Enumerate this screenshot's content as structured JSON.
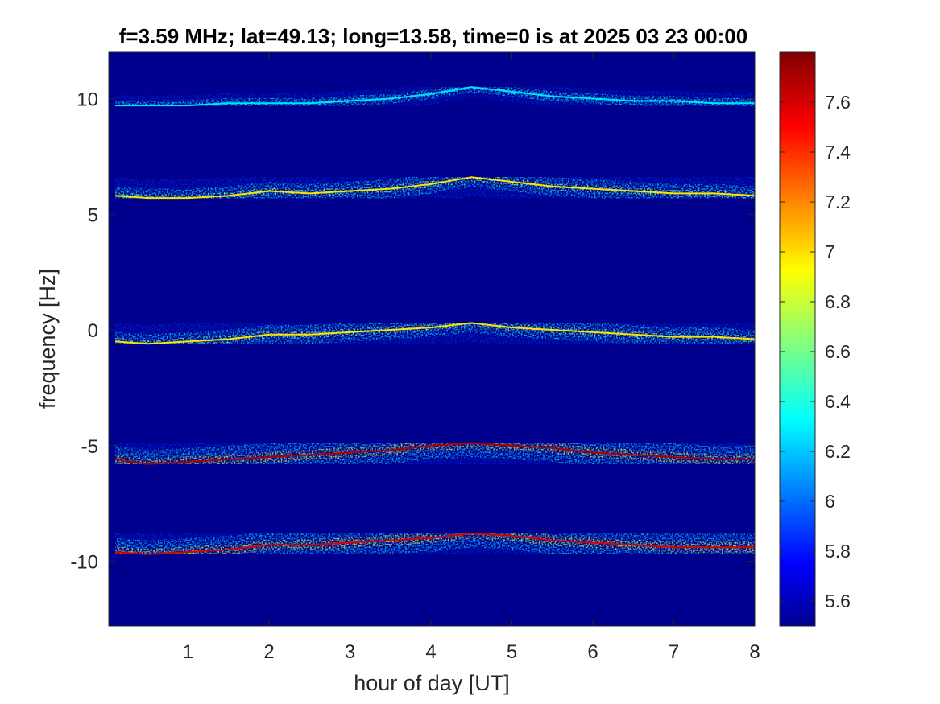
{
  "chart_data": {
    "type": "heatmap",
    "title": "f=3.59 MHz;  lat=49.13; long=13.58, time=0 is at 2025 03 23 00:00",
    "xlabel": "hour of day [UT]",
    "ylabel": "frequency [Hz]",
    "xlim": [
      0.02,
      8.0
    ],
    "ylim": [
      -12.8,
      12.0
    ],
    "xticks": [
      1,
      2,
      3,
      4,
      5,
      6,
      7,
      8
    ],
    "xtick_labels": [
      "1",
      "2",
      "3",
      "4",
      "5",
      "6",
      "7",
      "8"
    ],
    "yticks": [
      10,
      5,
      0,
      -5,
      -10
    ],
    "ytick_labels": [
      "10",
      "5",
      "0",
      "-5",
      "-10"
    ],
    "colormap": "jet",
    "background_color": "#00008f",
    "colorbar": {
      "clim": [
        5.5,
        7.8
      ],
      "ticks": [
        5.6,
        5.8,
        6.0,
        6.2,
        6.4,
        6.6,
        6.8,
        7.0,
        7.2,
        7.4,
        7.6
      ],
      "tick_labels": [
        "5.6",
        "5.8",
        "6",
        "6.2",
        "6.4",
        "6.6",
        "6.8",
        "7",
        "7.2",
        "7.4",
        "7.6"
      ]
    },
    "series": [
      {
        "x": [
          0.1,
          0.5,
          1.0,
          1.5,
          2.0,
          2.5,
          3.0,
          3.5,
          4.0,
          4.5,
          5.0,
          5.5,
          6.0,
          6.5,
          7.0,
          7.5,
          8.0
        ],
        "y": [
          9.7,
          9.7,
          9.7,
          9.8,
          9.8,
          9.8,
          9.9,
          10.0,
          10.2,
          10.5,
          10.3,
          10.1,
          10.0,
          9.9,
          9.9,
          9.8,
          9.8
        ],
        "peak": 6.3
      },
      {
        "x": [
          0.1,
          0.5,
          1.0,
          1.5,
          2.0,
          2.5,
          3.0,
          3.5,
          4.0,
          4.5,
          5.0,
          5.5,
          6.0,
          6.5,
          7.0,
          7.5,
          8.0
        ],
        "y": [
          5.8,
          5.7,
          5.7,
          5.8,
          6.0,
          5.9,
          6.0,
          6.1,
          6.3,
          6.6,
          6.4,
          6.2,
          6.1,
          6.0,
          5.9,
          5.9,
          5.8
        ],
        "peak": 7.0
      },
      {
        "x": [
          0.1,
          0.5,
          1.0,
          1.5,
          2.0,
          2.5,
          3.0,
          3.5,
          4.0,
          4.5,
          5.0,
          5.5,
          6.0,
          6.5,
          7.0,
          7.5,
          8.0
        ],
        "y": [
          -0.5,
          -0.6,
          -0.5,
          -0.4,
          -0.2,
          -0.2,
          -0.1,
          0.0,
          0.1,
          0.3,
          0.1,
          0.0,
          -0.1,
          -0.2,
          -0.3,
          -0.3,
          -0.4
        ],
        "peak": 7.0
      },
      {
        "x": [
          0.1,
          0.5,
          1.0,
          1.5,
          2.0,
          2.5,
          3.0,
          3.5,
          4.0,
          4.5,
          5.0,
          5.5,
          6.0,
          6.5,
          7.0,
          7.5,
          8.0
        ],
        "y": [
          -5.6,
          -5.8,
          -5.7,
          -5.6,
          -5.5,
          -5.4,
          -5.3,
          -5.2,
          -5.0,
          -4.9,
          -5.0,
          -5.1,
          -5.3,
          -5.4,
          -5.5,
          -5.6,
          -5.6
        ],
        "peak": 7.7
      },
      {
        "x": [
          0.1,
          0.5,
          1.0,
          1.5,
          2.0,
          2.5,
          3.0,
          3.5,
          4.0,
          4.5,
          5.0,
          5.5,
          6.0,
          6.5,
          7.0,
          7.5,
          8.0
        ],
        "y": [
          -9.6,
          -9.7,
          -9.6,
          -9.5,
          -9.3,
          -9.3,
          -9.2,
          -9.1,
          -9.0,
          -8.8,
          -8.9,
          -9.1,
          -9.2,
          -9.3,
          -9.4,
          -9.4,
          -9.4
        ],
        "peak": 7.6
      }
    ]
  }
}
